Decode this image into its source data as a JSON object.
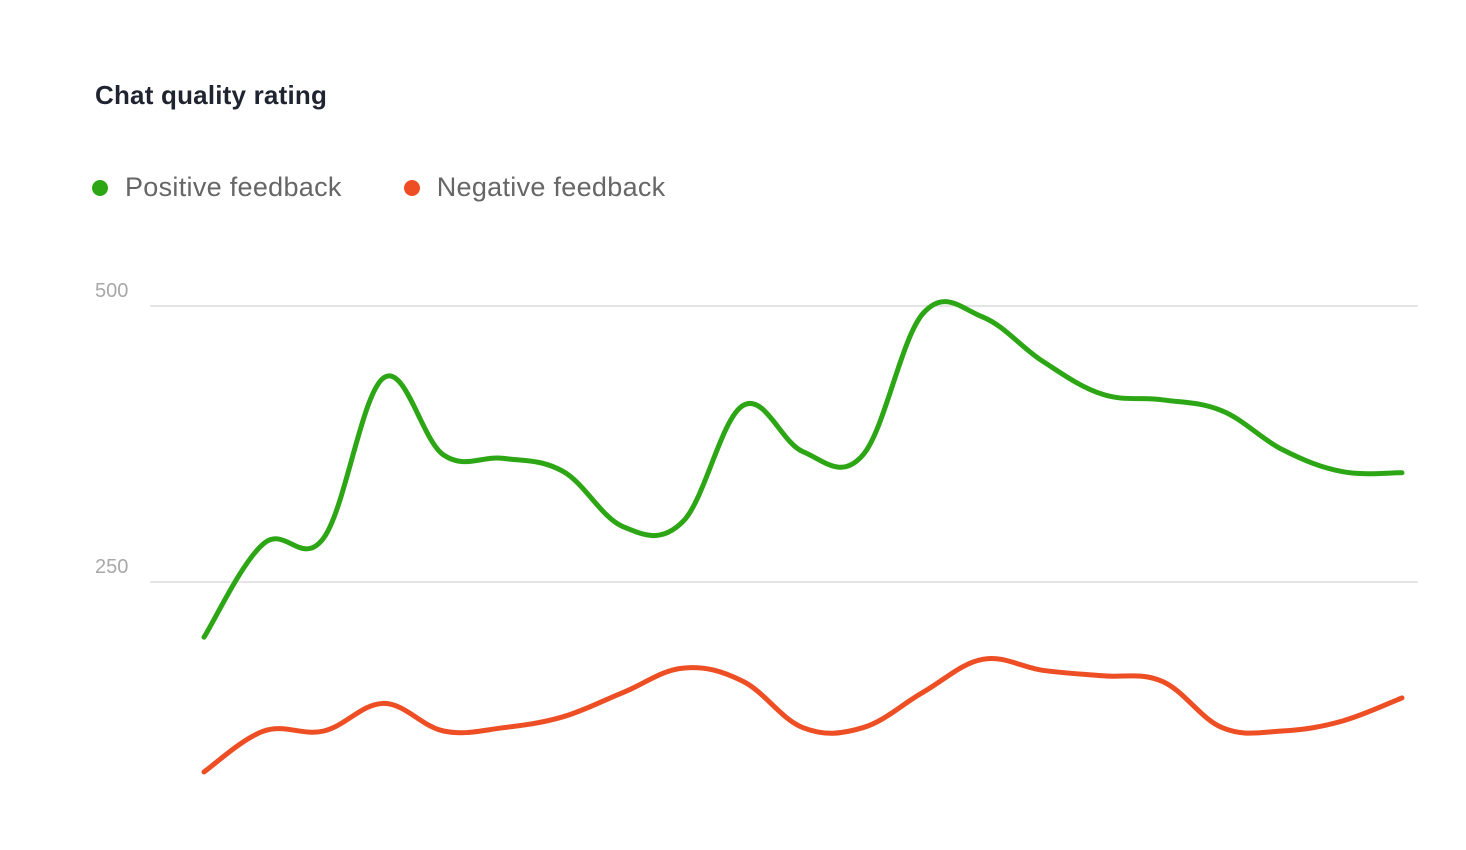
{
  "chart_data": {
    "type": "line",
    "title": "Chat quality rating",
    "xlabel": "",
    "ylabel": "",
    "ylim": [
      0,
      500
    ],
    "y_ticks": [
      "250",
      "500"
    ],
    "grid": true,
    "legend_position": "top-left",
    "x": [
      1,
      2,
      3,
      4,
      5,
      6,
      7,
      8,
      9,
      10,
      11,
      12,
      13,
      14,
      15,
      16,
      17,
      18,
      19,
      20,
      21
    ],
    "series": [
      {
        "name": "Positive feedback",
        "color": "#2ca614",
        "values": [
          200,
          285,
          290,
          435,
          365,
          362,
          350,
          300,
          305,
          410,
          368,
          365,
          493,
          490,
          450,
          420,
          415,
          405,
          370,
          350,
          349
        ]
      },
      {
        "name": "Negative feedback",
        "color": "#ee4e24",
        "values": [
          78,
          115,
          115,
          140,
          115,
          118,
          128,
          150,
          172,
          160,
          118,
          118,
          150,
          180,
          170,
          165,
          160,
          118,
          115,
          124,
          145
        ]
      }
    ]
  }
}
